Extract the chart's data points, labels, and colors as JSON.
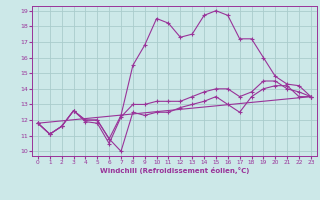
{
  "xlabel": "Windchill (Refroidissement éolien,°C)",
  "bg_color": "#cce8e8",
  "grid_color": "#aacccc",
  "line_color": "#993399",
  "xlim": [
    -0.5,
    23.5
  ],
  "ylim": [
    9.7,
    19.3
  ],
  "yticks": [
    10,
    11,
    12,
    13,
    14,
    15,
    16,
    17,
    18,
    19
  ],
  "xticks": [
    0,
    1,
    2,
    3,
    4,
    5,
    6,
    7,
    8,
    9,
    10,
    11,
    12,
    13,
    14,
    15,
    16,
    17,
    18,
    19,
    20,
    21,
    22,
    23
  ],
  "series": {
    "line1_x": [
      0,
      1,
      2,
      3,
      4,
      5,
      6,
      7,
      8,
      9,
      10,
      11,
      12,
      13,
      14,
      15,
      16,
      17,
      18,
      19,
      20,
      21,
      22,
      23
    ],
    "line1_y": [
      11.8,
      11.1,
      11.6,
      12.6,
      12.0,
      12.0,
      10.8,
      12.3,
      15.5,
      16.8,
      18.5,
      18.2,
      17.3,
      17.5,
      18.7,
      19.0,
      18.7,
      17.2,
      17.2,
      16.0,
      14.8,
      14.3,
      14.2,
      13.5
    ],
    "line2_x": [
      0,
      1,
      2,
      3,
      4,
      5,
      6,
      7,
      8,
      9,
      10,
      11,
      12,
      13,
      14,
      15,
      16,
      17,
      18,
      19,
      20,
      21,
      22,
      23
    ],
    "line2_y": [
      11.8,
      11.1,
      11.6,
      12.6,
      11.9,
      11.8,
      10.5,
      12.2,
      13.0,
      13.0,
      13.2,
      13.2,
      13.2,
      13.5,
      13.8,
      14.0,
      14.0,
      13.5,
      13.8,
      14.5,
      14.5,
      14.0,
      13.8,
      13.5
    ],
    "line3_x": [
      0,
      1,
      2,
      3,
      4,
      5,
      6,
      7,
      8,
      9,
      10,
      11,
      12,
      13,
      14,
      15,
      16,
      17,
      18,
      19,
      20,
      21,
      22,
      23
    ],
    "line3_y": [
      11.8,
      11.1,
      11.6,
      12.6,
      12.0,
      12.0,
      10.8,
      10.0,
      12.5,
      12.3,
      12.5,
      12.5,
      12.8,
      13.0,
      13.2,
      13.5,
      13.0,
      12.5,
      13.5,
      14.0,
      14.2,
      14.2,
      13.5,
      13.5
    ],
    "line4_x": [
      0,
      23
    ],
    "line4_y": [
      11.8,
      13.5
    ]
  }
}
